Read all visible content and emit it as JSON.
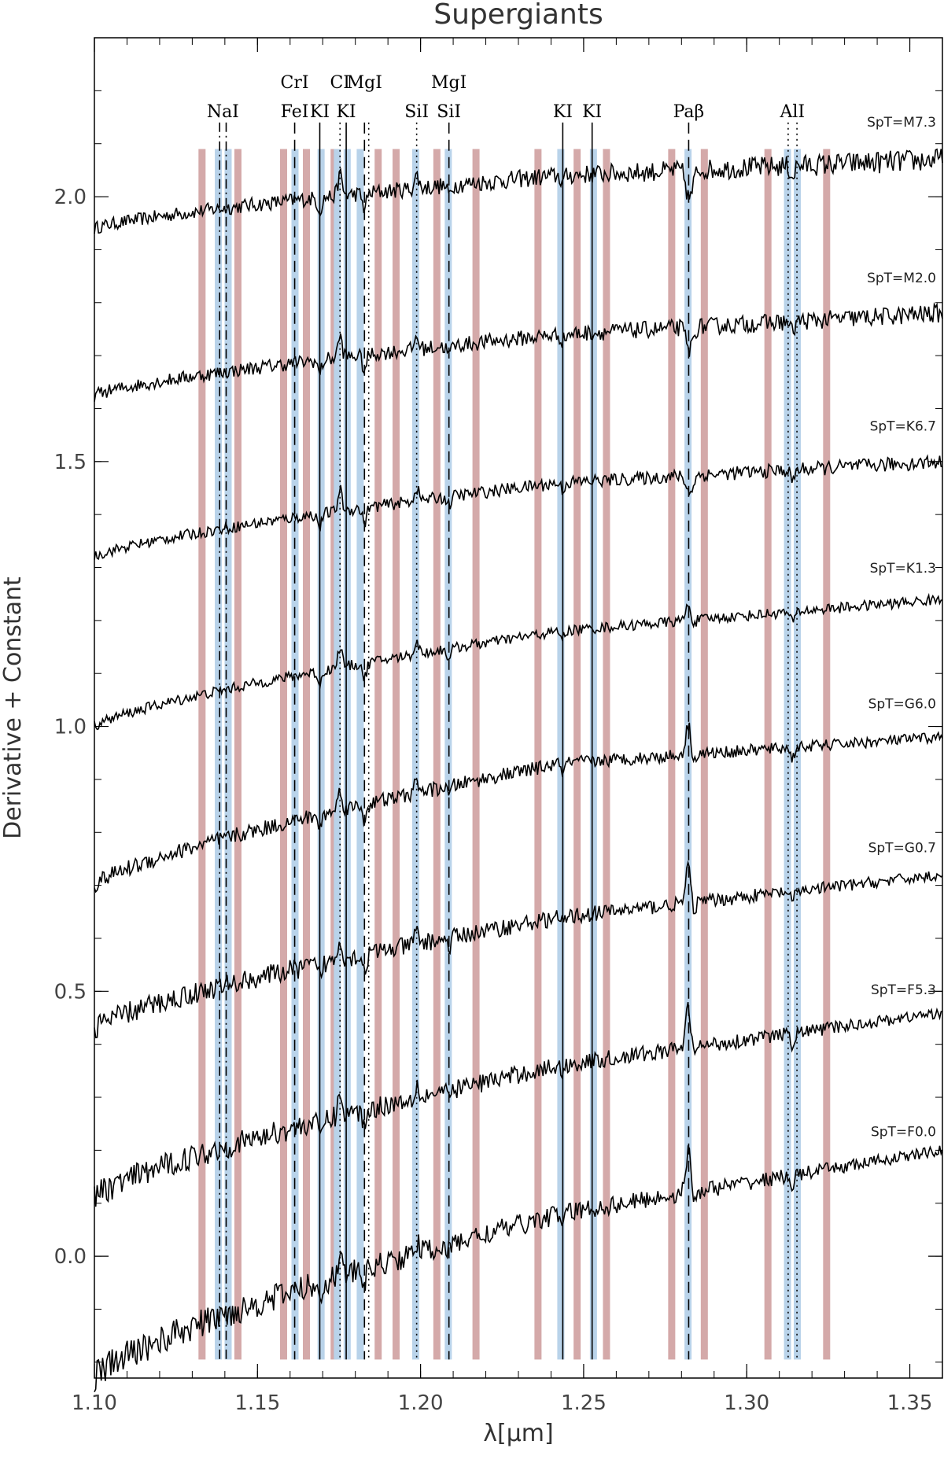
{
  "chart_data": {
    "type": "line",
    "title": "Supergiants",
    "xlabel": "λ[μm]",
    "ylabel": "Derivative + Constant",
    "xlim": [
      1.1,
      1.36
    ],
    "ylim": [
      -0.23,
      2.3
    ],
    "x_ticks": [
      1.1,
      1.15,
      1.2,
      1.25,
      1.3,
      1.35
    ],
    "x_tick_labels": [
      "1.10",
      "1.15",
      "1.20",
      "1.25",
      "1.30",
      "1.35"
    ],
    "y_ticks": [
      0.0,
      0.5,
      1.0,
      1.5,
      2.0
    ],
    "y_tick_labels": [
      "0.0",
      "0.5",
      "1.0",
      "1.5",
      "2.0"
    ],
    "colors": {
      "red_band": "#d4a9a9",
      "blue_band": "#b9d3ea",
      "spectrum": "#000000"
    },
    "red_bands": [
      1.133,
      1.144,
      1.158,
      1.165,
      1.1735,
      1.187,
      1.1925,
      1.205,
      1.217,
      1.236,
      1.248,
      1.257,
      1.277,
      1.287,
      1.3065,
      1.3245
    ],
    "blue_bands": [
      1.138,
      1.141,
      1.1615,
      1.1695,
      1.1745,
      1.1775,
      1.1815,
      1.1985,
      1.2085,
      1.243,
      1.253,
      1.282,
      1.3125,
      1.3155
    ],
    "line_markers": [
      {
        "x": 1.1384,
        "style": "dashdot"
      },
      {
        "x": 1.1404,
        "style": "dashdot"
      },
      {
        "x": 1.1614,
        "style": "dashed"
      },
      {
        "x": 1.1691,
        "style": "solid"
      },
      {
        "x": 1.1753,
        "style": "dotted"
      },
      {
        "x": 1.1772,
        "style": "solid"
      },
      {
        "x": 1.1828,
        "style": "dashed"
      },
      {
        "x": 1.1841,
        "style": "dotted"
      },
      {
        "x": 1.1988,
        "style": "dotted"
      },
      {
        "x": 1.2087,
        "style": "dashed"
      },
      {
        "x": 1.2436,
        "style": "solid"
      },
      {
        "x": 1.2526,
        "style": "solid"
      },
      {
        "x": 1.2822,
        "style": "dashed"
      },
      {
        "x": 1.3127,
        "style": "dotted"
      },
      {
        "x": 1.3154,
        "style": "dotted"
      }
    ],
    "line_labels": [
      {
        "text": "NaI",
        "x": 1.1394,
        "row": 2
      },
      {
        "text": "CrI",
        "x": 1.1614,
        "row": 1
      },
      {
        "text": "FeI",
        "x": 1.1614,
        "row": 2
      },
      {
        "text": "KI",
        "x": 1.1691,
        "row": 2
      },
      {
        "text": "CI",
        "x": 1.1753,
        "row": 1
      },
      {
        "text": "KI",
        "x": 1.1772,
        "row": 2
      },
      {
        "text": "MgI",
        "x": 1.1828,
        "row": 1
      },
      {
        "text": "SiI",
        "x": 1.1988,
        "row": 2
      },
      {
        "text": "MgI",
        "x": 1.2087,
        "row": 1
      },
      {
        "text": "SiI",
        "x": 1.2087,
        "row": 2
      },
      {
        "text": "KI",
        "x": 1.2436,
        "row": 2
      },
      {
        "text": "KI",
        "x": 1.2526,
        "row": 2
      },
      {
        "text": "Paβ",
        "x": 1.2822,
        "row": 2
      },
      {
        "text": "AlI",
        "x": 1.314,
        "row": 2
      }
    ],
    "series": [
      {
        "name": "SpT=M7.3",
        "offset": 2.0,
        "start": 1.94,
        "mid": 2.04,
        "end": 2.07,
        "noise_blue": 0.012,
        "noise_red": 0.022,
        "pab": -0.05
      },
      {
        "name": "SpT=M2.0",
        "offset": 1.72,
        "start": 1.625,
        "mid": 1.74,
        "end": 1.78,
        "noise_blue": 0.012,
        "noise_red": 0.018,
        "pab": -0.04
      },
      {
        "name": "SpT=K6.7",
        "offset": 1.45,
        "start": 1.32,
        "mid": 1.46,
        "end": 1.5,
        "noise_blue": 0.01,
        "noise_red": 0.014,
        "pab": -0.03
      },
      {
        "name": "SpT=K1.3",
        "offset": 1.17,
        "start": 1.0,
        "mid": 1.18,
        "end": 1.24,
        "noise_blue": 0.01,
        "noise_red": 0.01,
        "pab": 0.03
      },
      {
        "name": "SpT=G6.0",
        "offset": 0.9,
        "start": 0.7,
        "mid": 0.93,
        "end": 0.98,
        "noise_blue": 0.016,
        "noise_red": 0.01,
        "pab": 0.06
      },
      {
        "name": "SpT=G0.7",
        "offset": 0.62,
        "start": 0.43,
        "mid": 0.64,
        "end": 0.72,
        "noise_blue": 0.022,
        "noise_red": 0.01,
        "pab": 0.07
      },
      {
        "name": "SpT=F5.3",
        "offset": 0.33,
        "start": 0.11,
        "mid": 0.36,
        "end": 0.46,
        "noise_blue": 0.025,
        "noise_red": 0.01,
        "pab": 0.08
      },
      {
        "name": "SpT=F0.0",
        "offset": 0.05,
        "start": -0.23,
        "mid": 0.08,
        "end": 0.2,
        "noise_blue": 0.03,
        "noise_red": 0.01,
        "pab": 0.08
      }
    ]
  }
}
